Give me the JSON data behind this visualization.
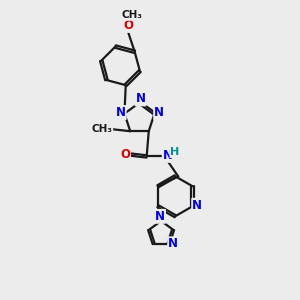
{
  "background_color": "#ececec",
  "bond_color": "#1a1a1a",
  "bond_width": 1.6,
  "atom_colors": {
    "N": "#0000ee",
    "O": "#dd0000",
    "C": "#1a1a1a",
    "H": "#009090"
  },
  "font_size": 8.5
}
